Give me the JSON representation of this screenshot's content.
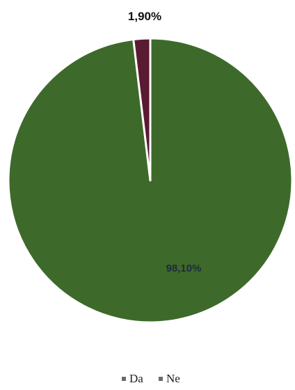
{
  "chart_data": {
    "type": "pie",
    "categories": [
      "Da",
      "Ne"
    ],
    "values": [
      98.1,
      1.9
    ],
    "labels": [
      "98,10%",
      "1,90%"
    ],
    "colors": [
      "#3d6a2a",
      "#5a1a32"
    ],
    "legend_position": "bottom"
  }
}
